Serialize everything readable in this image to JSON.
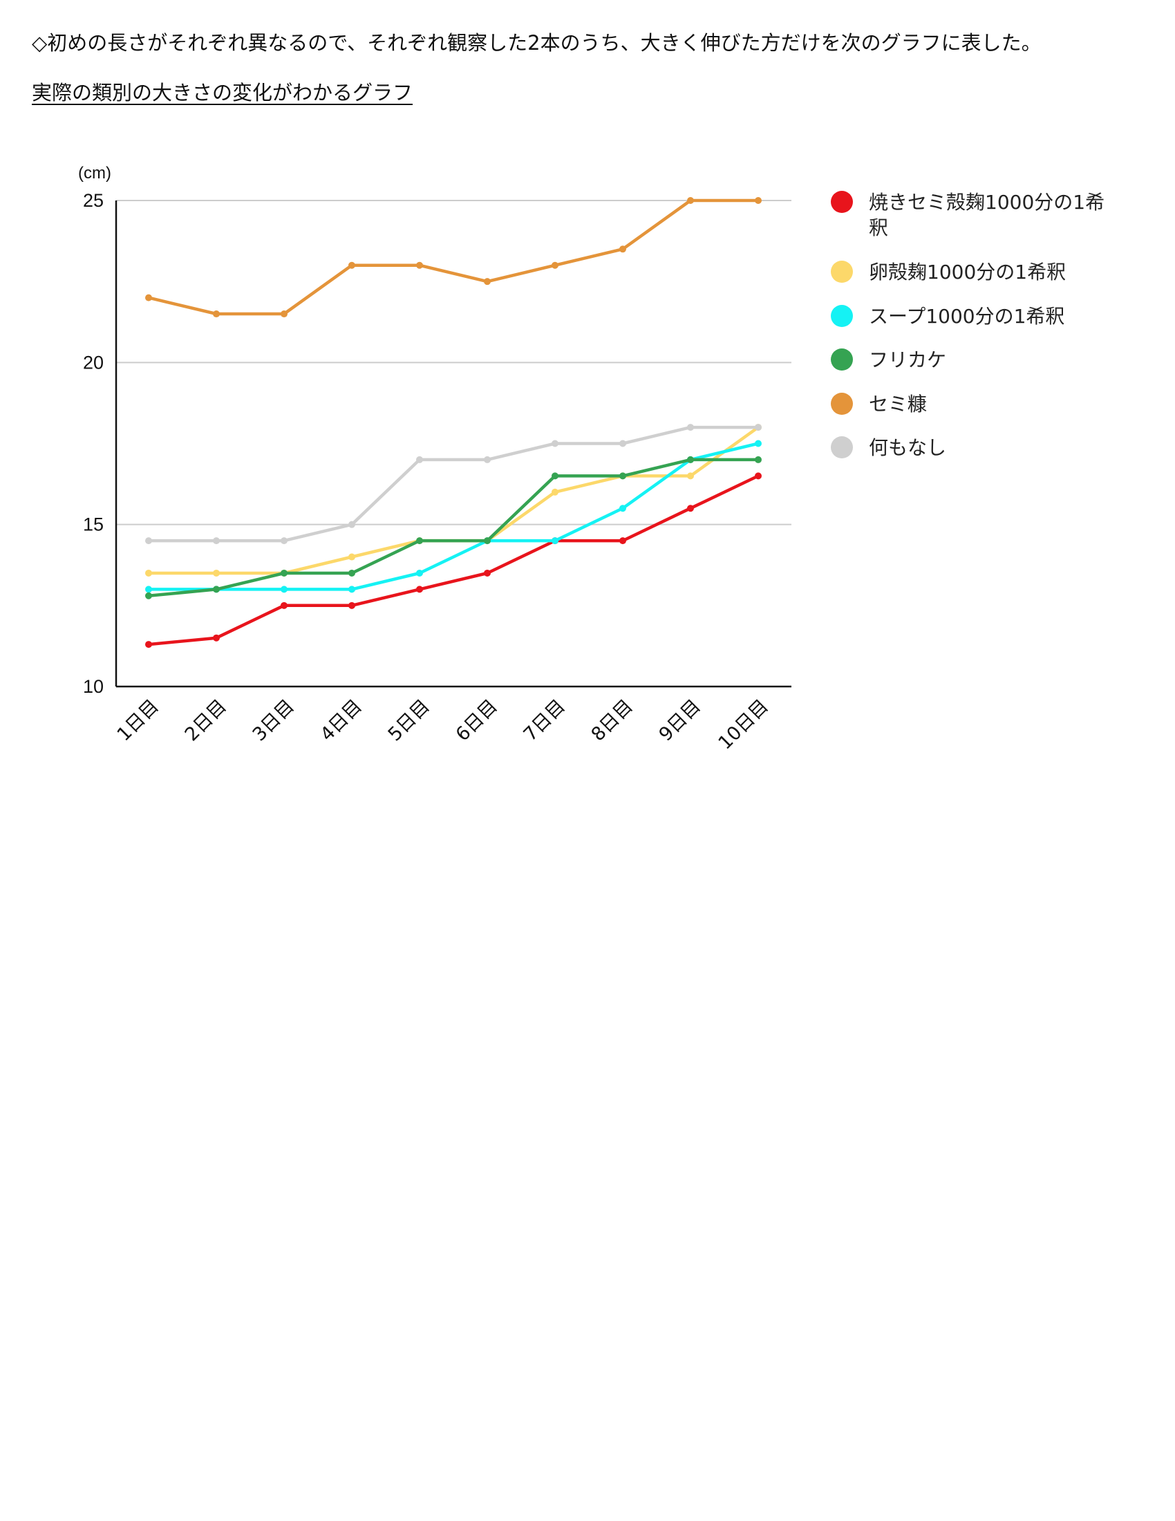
{
  "document": {
    "intro_text": "◇初めの長さがそれぞれ異なるので、それぞれ観察した2本のうち、大きく伸びた方だけを次のグラフに表した。",
    "heading": "実際の類別の大きさの変化がわかるグラフ"
  },
  "chart_data": {
    "type": "line",
    "title": "",
    "xlabel": "",
    "ylabel": "(cm)",
    "ylim": [
      10,
      25
    ],
    "yticks": [
      10,
      15,
      20,
      25
    ],
    "grid": true,
    "legend_position": "right",
    "categories": [
      "1日目",
      "2日目",
      "3日目",
      "4日目",
      "5日目",
      "6日目",
      "7日目",
      "8日目",
      "9日目",
      "10日目"
    ],
    "series": [
      {
        "name": "焼きセミ殻麹1000分の1希釈",
        "color": "#e8141c",
        "values": [
          11.3,
          11.5,
          12.5,
          12.5,
          13.0,
          13.5,
          14.5,
          14.5,
          15.5,
          16.5
        ]
      },
      {
        "name": "卵殻麹1000分の1希釈",
        "color": "#fcd86a",
        "values": [
          13.5,
          13.5,
          13.5,
          14.0,
          14.5,
          14.5,
          16.0,
          16.5,
          16.5,
          18.0
        ]
      },
      {
        "name": "スープ1000分の1希釈",
        "color": "#15f2f4",
        "values": [
          13.0,
          13.0,
          13.0,
          13.0,
          13.5,
          14.5,
          14.5,
          15.5,
          17.0,
          17.5
        ]
      },
      {
        "name": "フリカケ",
        "color": "#35a352",
        "values": [
          12.8,
          13.0,
          13.5,
          13.5,
          14.5,
          14.5,
          16.5,
          16.5,
          17.0,
          17.0
        ]
      },
      {
        "name": "セミ糠",
        "color": "#e4943a",
        "values": [
          22.0,
          21.5,
          21.5,
          23.0,
          23.0,
          22.5,
          23.0,
          23.5,
          25.0,
          25.0
        ]
      },
      {
        "name": "何もなし",
        "color": "#cfcfcf",
        "values": [
          14.5,
          14.5,
          14.5,
          15.0,
          17.0,
          17.0,
          17.5,
          17.5,
          18.0,
          18.0
        ]
      }
    ]
  }
}
